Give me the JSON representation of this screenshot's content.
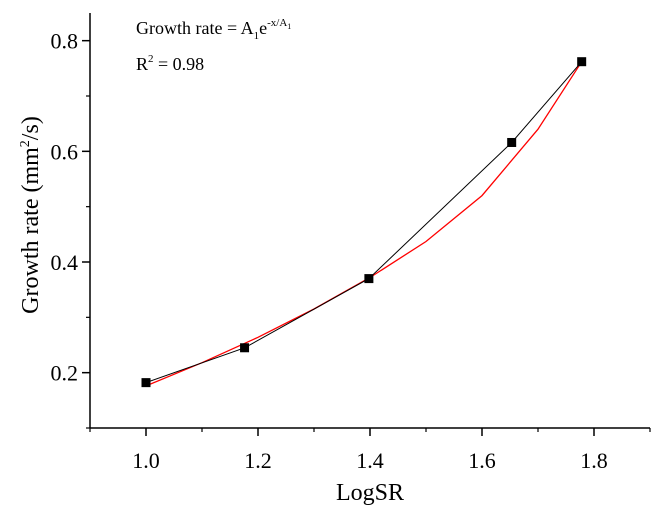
{
  "chart_data": {
    "type": "scatter",
    "xlabel": "LogSR",
    "ylabel": "Growth rate (mm²/s)",
    "ylabel_parts": {
      "pre": "Growth rate (mm",
      "sup": "2",
      "post": "/s)"
    },
    "xlim": [
      0.9,
      1.9
    ],
    "ylim": [
      0.1,
      0.85
    ],
    "x_ticks": [
      1.0,
      1.2,
      1.4,
      1.6,
      1.8
    ],
    "x_tick_labels": [
      "1.0",
      "1.2",
      "1.4",
      "1.6",
      "1.8"
    ],
    "y_ticks": [
      0.2,
      0.4,
      0.6,
      0.8
    ],
    "y_tick_labels": [
      "0.2",
      "0.4",
      "0.6",
      "0.8"
    ],
    "grid": false,
    "series": [
      {
        "markers": true,
        "connected": true,
        "color": "#000000",
        "x": [
          1.0,
          1.176,
          1.398,
          1.653,
          1.778
        ],
        "y": [
          0.182,
          0.245,
          0.37,
          0.616,
          0.762
        ]
      }
    ],
    "fit": {
      "color": "#ff0000",
      "model": "exponential",
      "x": [
        1.0,
        1.1,
        1.2,
        1.3,
        1.4,
        1.5,
        1.6,
        1.7,
        1.778
      ],
      "y": [
        0.176,
        0.218,
        0.264,
        0.315,
        0.372,
        0.437,
        0.52,
        0.64,
        0.762
      ]
    },
    "annotations": {
      "equation_text": "Growth rate = A",
      "equation_sub": "1",
      "equation_e": "e",
      "equation_exp": "-x/A",
      "equation_exp_sub": "1",
      "r2_label": "R",
      "r2_sup": "2",
      "r2_value": " = 0.98"
    }
  }
}
